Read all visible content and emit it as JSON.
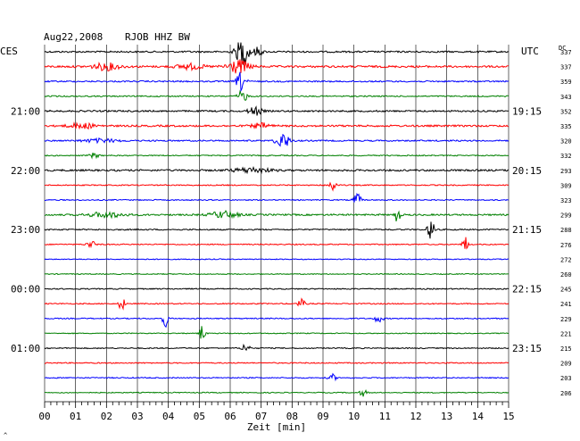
{
  "header": {
    "date": "Aug22,2008",
    "station": "RJOB HHZ BW",
    "left_tz": "CES",
    "right_tz": "UTC",
    "dc_label": "DC"
  },
  "footer": {
    "xlabel": "Zeit [min]",
    "corner_mark": "^"
  },
  "colors": {
    "trace_cycle": [
      "#000000",
      "#ff0000",
      "#0000ff",
      "#008000"
    ],
    "grid": "#000000",
    "background": "#ffffff"
  },
  "chart_data": {
    "type": "line",
    "title": "Aug22,2008  RJOB HHZ BW",
    "xlabel": "Zeit [min]",
    "xlim": [
      0,
      15
    ],
    "x_ticks": [
      "00",
      "01",
      "02",
      "03",
      "04",
      "05",
      "06",
      "07",
      "08",
      "09",
      "10",
      "11",
      "12",
      "13",
      "14",
      "15"
    ],
    "rows_per_hour": 4,
    "left_time_labels": [
      {
        "row": 4,
        "label": "21:00"
      },
      {
        "row": 8,
        "label": "22:00"
      },
      {
        "row": 12,
        "label": "23:00"
      },
      {
        "row": 16,
        "label": "00:00"
      },
      {
        "row": 20,
        "label": "01:00"
      }
    ],
    "right_time_labels": [
      {
        "row": 4,
        "label": "19:15"
      },
      {
        "row": 8,
        "label": "20:15"
      },
      {
        "row": 12,
        "label": "21:15"
      },
      {
        "row": 16,
        "label": "22:15"
      },
      {
        "row": 20,
        "label": "23:15"
      }
    ],
    "dc_offsets": [
      337,
      337,
      359,
      343,
      352,
      335,
      320,
      332,
      293,
      309,
      323,
      299,
      288,
      276,
      272,
      260,
      245,
      241,
      229,
      221,
      215,
      209,
      203,
      206
    ],
    "row_noise": [
      0.9,
      1.1,
      0.8,
      0.7,
      0.9,
      1.0,
      0.8,
      0.6,
      1.0,
      0.6,
      0.6,
      0.9,
      0.7,
      0.6,
      0.5,
      0.5,
      0.6,
      0.6,
      0.6,
      0.5,
      0.6,
      0.6,
      0.6,
      0.5
    ],
    "events": [
      {
        "row": 0,
        "x": 6.4,
        "amp": 16,
        "width": 0.15
      },
      {
        "row": 0,
        "x": 6.9,
        "amp": 5,
        "width": 0.1
      },
      {
        "row": 1,
        "x": 2.0,
        "amp": 4,
        "width": 0.3
      },
      {
        "row": 1,
        "x": 4.7,
        "amp": 3,
        "width": 0.3
      },
      {
        "row": 1,
        "x": 6.25,
        "amp": 8,
        "width": 0.25
      },
      {
        "row": 2,
        "x": 6.35,
        "amp": 11,
        "width": 0.1
      },
      {
        "row": 3,
        "x": 6.4,
        "amp": 7,
        "width": 0.1
      },
      {
        "row": 4,
        "x": 6.8,
        "amp": 5,
        "width": 0.15
      },
      {
        "row": 5,
        "x": 1.2,
        "amp": 3,
        "width": 0.3
      },
      {
        "row": 5,
        "x": 7.0,
        "amp": 3,
        "width": 0.2
      },
      {
        "row": 6,
        "x": 7.7,
        "amp": 9,
        "width": 0.15
      },
      {
        "row": 6,
        "x": 1.8,
        "amp": 2,
        "width": 0.4
      },
      {
        "row": 7,
        "x": 1.6,
        "amp": 3,
        "width": 0.1
      },
      {
        "row": 8,
        "x": 6.7,
        "amp": 3,
        "width": 0.4
      },
      {
        "row": 9,
        "x": 9.3,
        "amp": 7,
        "width": 0.08
      },
      {
        "row": 10,
        "x": 10.1,
        "amp": 8,
        "width": 0.08
      },
      {
        "row": 11,
        "x": 2.0,
        "amp": 3,
        "width": 0.4
      },
      {
        "row": 11,
        "x": 5.8,
        "amp": 4,
        "width": 0.3
      },
      {
        "row": 11,
        "x": 11.4,
        "amp": 9,
        "width": 0.06
      },
      {
        "row": 12,
        "x": 12.5,
        "amp": 12,
        "width": 0.08
      },
      {
        "row": 13,
        "x": 1.5,
        "amp": 4,
        "width": 0.1
      },
      {
        "row": 13,
        "x": 13.6,
        "amp": 9,
        "width": 0.06
      },
      {
        "row": 17,
        "x": 2.5,
        "amp": 9,
        "width": 0.06
      },
      {
        "row": 17,
        "x": 8.3,
        "amp": 5,
        "width": 0.08
      },
      {
        "row": 18,
        "x": 3.9,
        "amp": 10,
        "width": 0.06
      },
      {
        "row": 18,
        "x": 10.8,
        "amp": 4,
        "width": 0.1
      },
      {
        "row": 19,
        "x": 5.1,
        "amp": 10,
        "width": 0.06
      },
      {
        "row": 20,
        "x": 6.5,
        "amp": 6,
        "width": 0.08
      },
      {
        "row": 22,
        "x": 9.3,
        "amp": 4,
        "width": 0.08
      },
      {
        "row": 23,
        "x": 10.3,
        "amp": 4,
        "width": 0.08
      }
    ]
  }
}
